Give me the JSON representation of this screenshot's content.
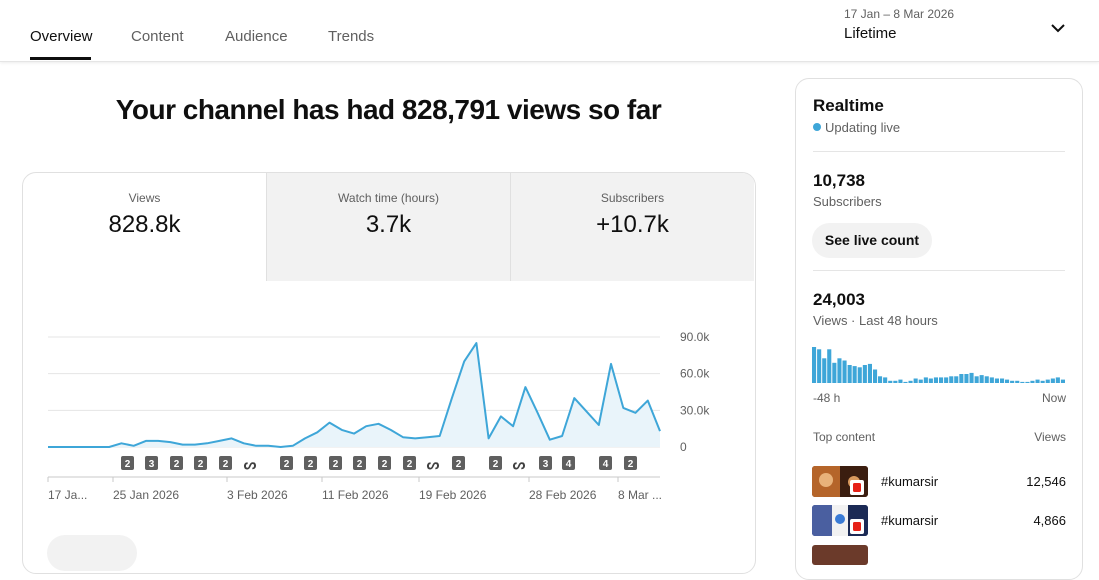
{
  "tabs": [
    {
      "label": "Overview",
      "active": true
    },
    {
      "label": "Content",
      "active": false
    },
    {
      "label": "Audience",
      "active": false
    },
    {
      "label": "Trends",
      "active": false
    }
  ],
  "date_picker": {
    "range": "17 Jan – 8 Mar 2026",
    "label": "Lifetime"
  },
  "headline": "Your channel has had 828,791 views so far",
  "metrics": [
    {
      "label": "Views",
      "value": "828.8k"
    },
    {
      "label": "Watch time (hours)",
      "value": "3.7k"
    },
    {
      "label": "Subscribers",
      "value": "+10.7k"
    }
  ],
  "colors": {
    "line": "#3ea6d8",
    "fill": "#e9f4fa",
    "marker": "#5f5f5f",
    "grid": "#e5e5e5"
  },
  "chart_data": {
    "type": "area",
    "series": [
      {
        "values": [
          0,
          0,
          0,
          0,
          0,
          0,
          3,
          1,
          5,
          5,
          4,
          2,
          2,
          3,
          5,
          7,
          3,
          1,
          1,
          0,
          1,
          7,
          12,
          20,
          14,
          11,
          17,
          19,
          14,
          8,
          7,
          8,
          9,
          40,
          70,
          85,
          7,
          25,
          17,
          49,
          28,
          6,
          9,
          40,
          29,
          18,
          68,
          32,
          28,
          38,
          13
        ]
      }
    ],
    "ylim": [
      0,
      90
    ],
    "yticks": [
      "90.0k",
      "60.0k",
      "30.0k",
      "0"
    ],
    "xticks": [
      "17 Ja...",
      "25 Jan 2026",
      "3 Feb 2026",
      "11 Feb 2026",
      "19 Feb 2026",
      "28 Feb 2026",
      "8 Mar ..."
    ],
    "markers": [
      "2",
      "3",
      "2",
      "2",
      "2",
      "shorts-icon",
      "2",
      "2",
      "2",
      "2",
      "2",
      "2",
      "shorts-icon",
      "2",
      "2",
      "shorts-icon",
      "3",
      "4",
      "4",
      "2"
    ]
  },
  "realtime": {
    "title": "Realtime",
    "status": "Updating live",
    "subs_value": "10,738",
    "subs_label": "Subscribers",
    "live_button": "See live count",
    "views_value": "24,003",
    "views_label": "Views · Last 48 hours",
    "bars": [
      32,
      30,
      22,
      30,
      18,
      22,
      20,
      16,
      15,
      14,
      16,
      17,
      12,
      6,
      5,
      2,
      2,
      3,
      1,
      2,
      4,
      3,
      5,
      4,
      5,
      5,
      5,
      6,
      6,
      8,
      8,
      9,
      6,
      7,
      6,
      5,
      4,
      4,
      3,
      2,
      2,
      1,
      1,
      2,
      3,
      2,
      3,
      4,
      5,
      3
    ],
    "axis_left": "-48 h",
    "axis_right": "Now",
    "top_content_label": "Top content",
    "top_content_col": "Views",
    "top_content": [
      {
        "title": "#kumarsir",
        "views": "12,546"
      },
      {
        "title": "#kumarsir",
        "views": "4,866"
      }
    ]
  }
}
